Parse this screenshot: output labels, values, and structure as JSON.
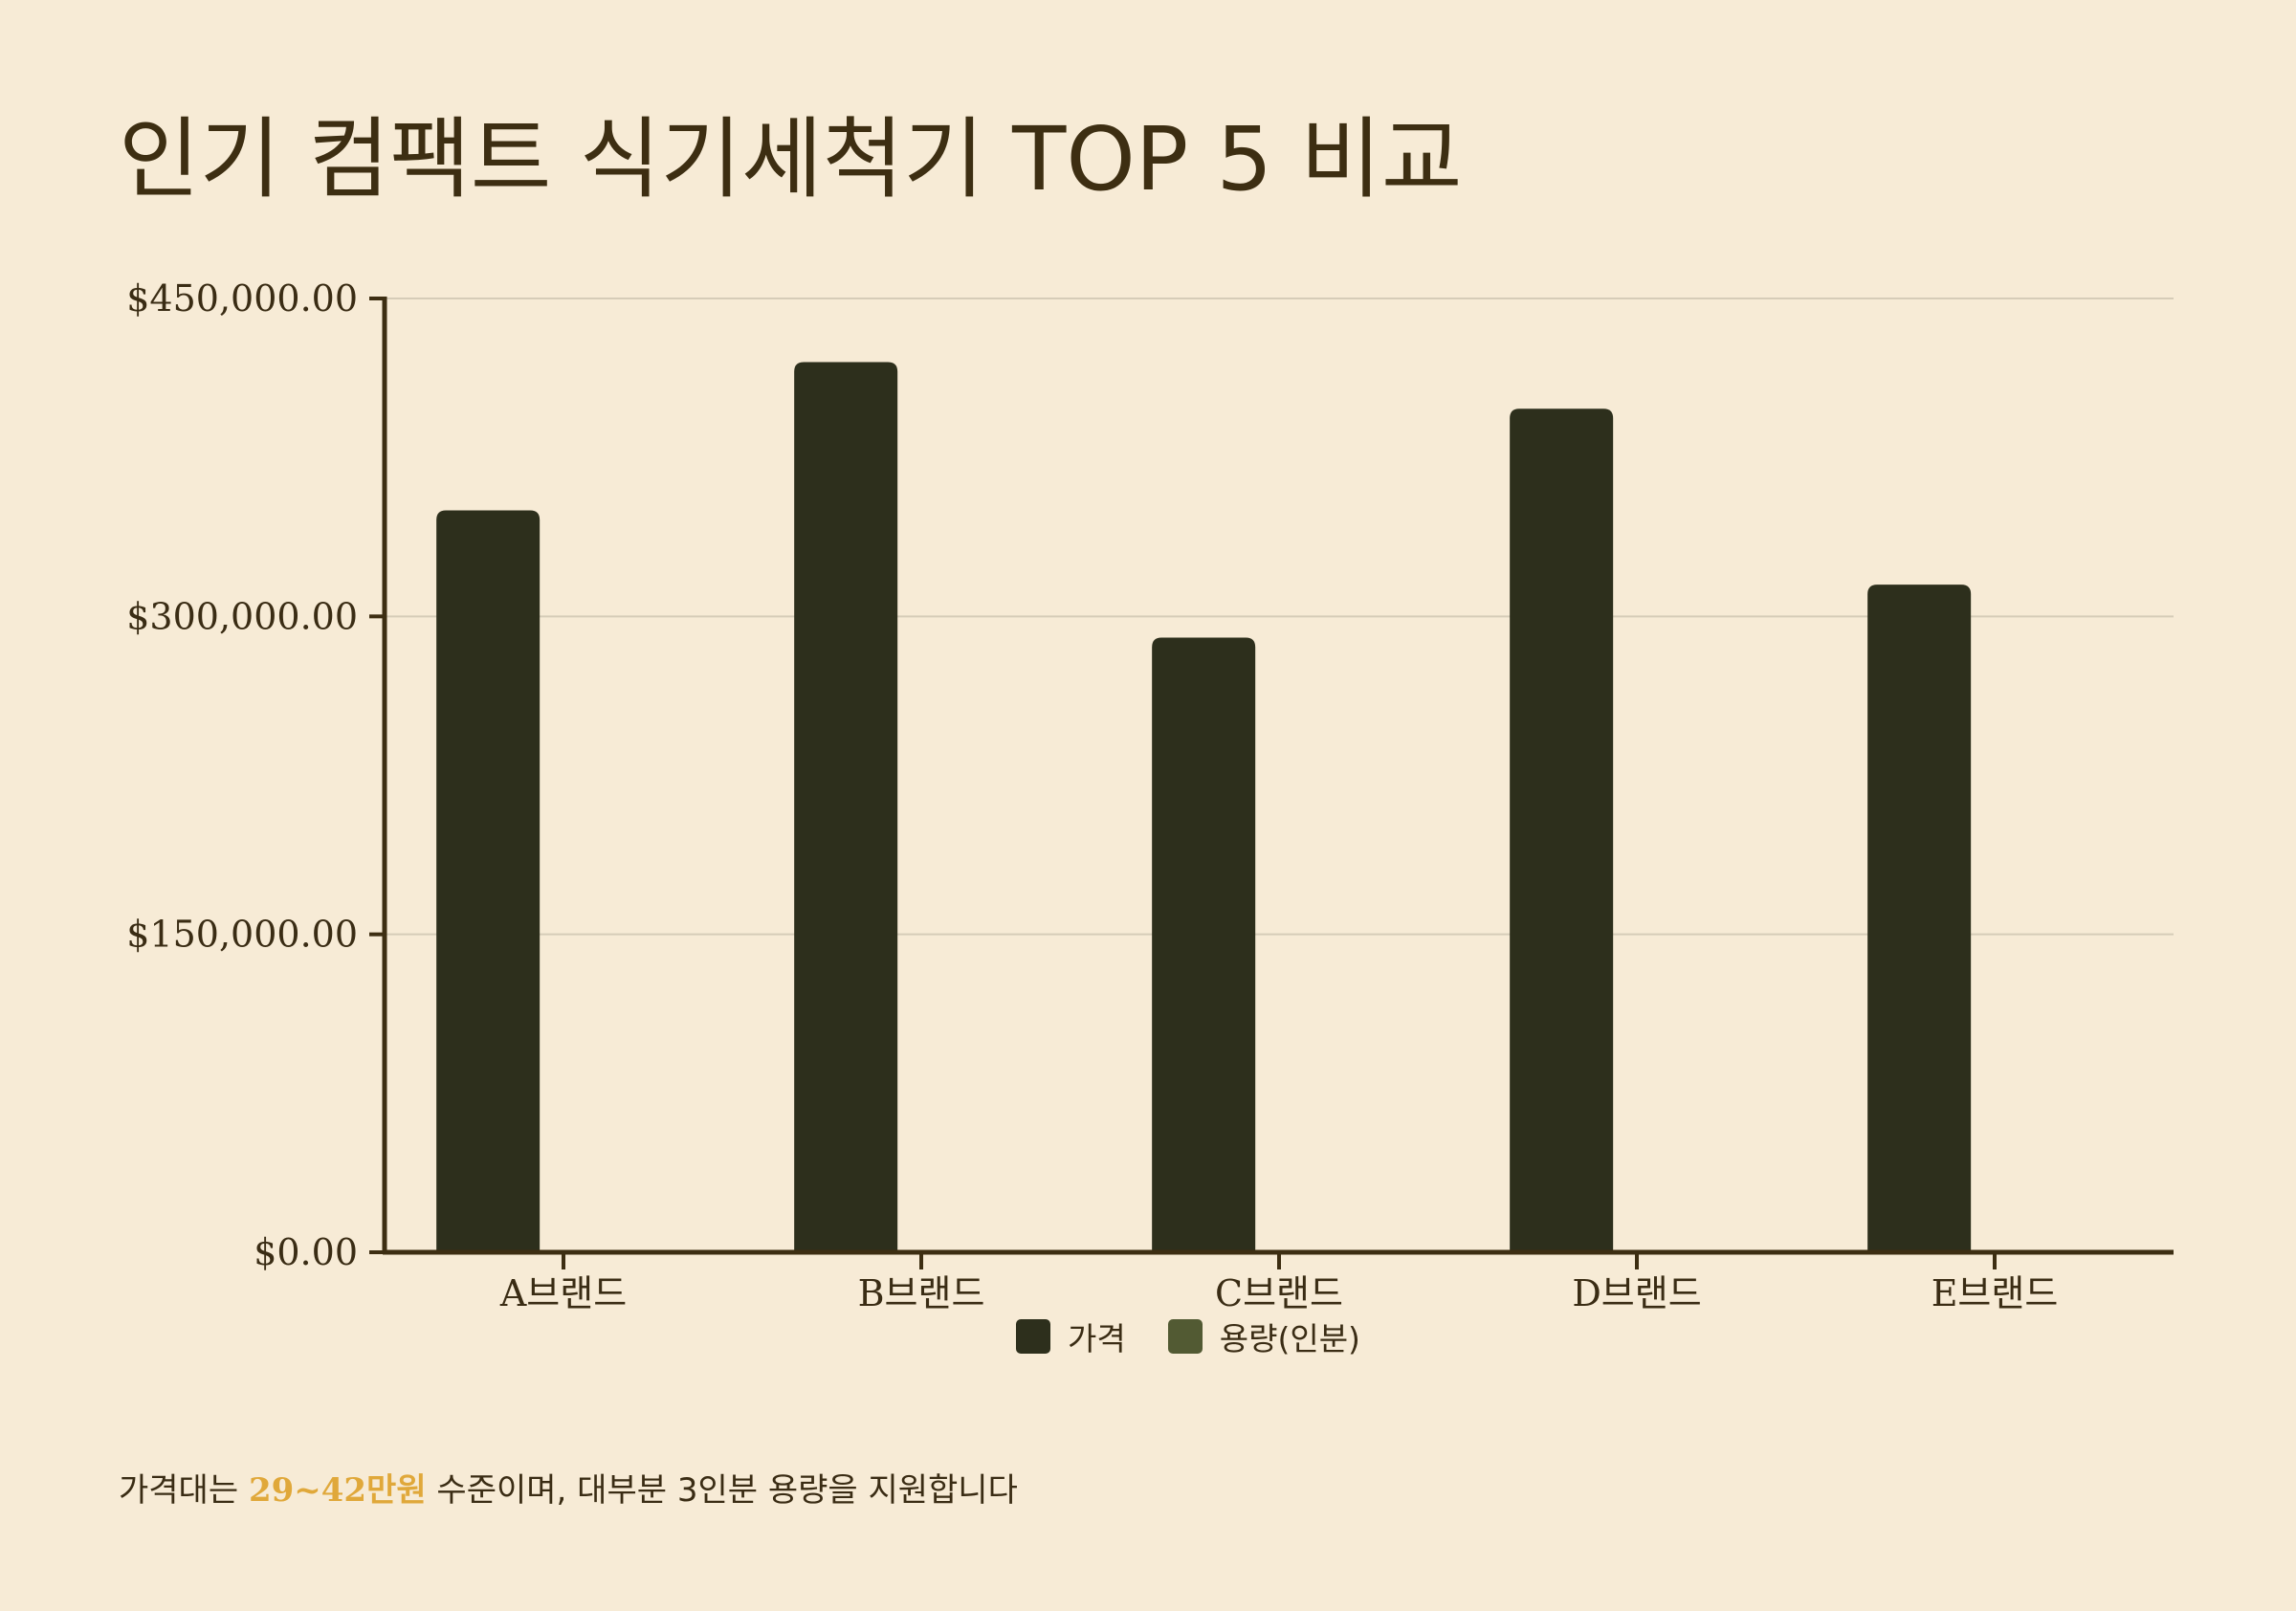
{
  "title": "인기 컴팩트 식기세척기 TOP 5 비교",
  "colors": {
    "background": "#f7ebd6",
    "price": "#2d2f1c",
    "capacity": "#525a33",
    "axis": "#3d2e12",
    "grid": "#d6ccb8",
    "highlight": "#e0a83a"
  },
  "chart_data": {
    "type": "bar",
    "categories": [
      "A브랜드",
      "B브랜드",
      "C브랜드",
      "D브랜드",
      "E브랜드"
    ],
    "series": [
      {
        "name": "가격",
        "values": [
          350000,
          420000,
          290000,
          398000,
          315000
        ]
      },
      {
        "name": "용량(인분)",
        "values": [
          3,
          3,
          3,
          3,
          3
        ]
      }
    ],
    "ylim": [
      0,
      450000
    ],
    "yticks": [
      0,
      150000,
      300000,
      450000
    ],
    "ytick_labels": [
      "$0.00",
      "$150,000.00",
      "$300,000.00",
      "$450,000.00"
    ],
    "grid": true,
    "legend_position": "bottom-center"
  },
  "footnote": {
    "before": "가격대는 ",
    "highlight": "29~42만원",
    "after": " 수준이며, 대부분 3인분 용량을 지원합니다"
  }
}
